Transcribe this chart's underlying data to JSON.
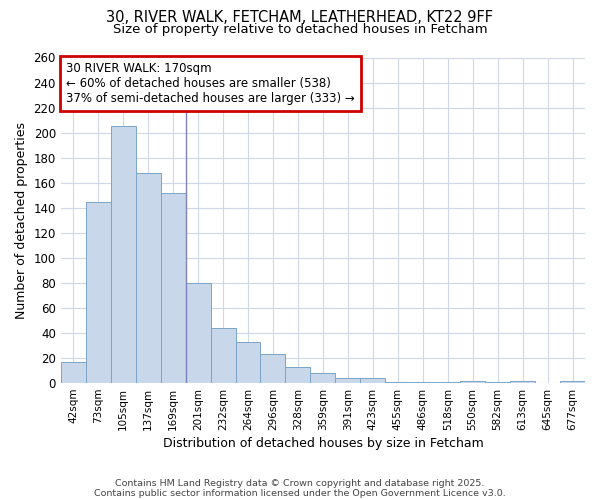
{
  "title1": "30, RIVER WALK, FETCHAM, LEATHERHEAD, KT22 9FF",
  "title2": "Size of property relative to detached houses in Fetcham",
  "xlabel": "Distribution of detached houses by size in Fetcham",
  "ylabel": "Number of detached properties",
  "categories": [
    "42sqm",
    "73sqm",
    "105sqm",
    "137sqm",
    "169sqm",
    "201sqm",
    "232sqm",
    "264sqm",
    "296sqm",
    "328sqm",
    "359sqm",
    "391sqm",
    "423sqm",
    "455sqm",
    "486sqm",
    "518sqm",
    "550sqm",
    "582sqm",
    "613sqm",
    "645sqm",
    "677sqm"
  ],
  "values": [
    17,
    145,
    205,
    168,
    152,
    80,
    44,
    33,
    23,
    13,
    8,
    4,
    4,
    1,
    1,
    1,
    2,
    1,
    2,
    0,
    2
  ],
  "bar_color": "#c8d8ea",
  "bar_edge_color": "#7ba4c8",
  "highlight_index": 4,
  "vline_color": "#8080c0",
  "annotation_line1": "30 RIVER WALK: 170sqm",
  "annotation_line2": "← 60% of detached houses are smaller (538)",
  "annotation_line3": "37% of semi-detached houses are larger (333) →",
  "annotation_box_color": "#cc0000",
  "ylim": [
    0,
    260
  ],
  "yticks": [
    0,
    20,
    40,
    60,
    80,
    100,
    120,
    140,
    160,
    180,
    200,
    220,
    240,
    260
  ],
  "footnote1": "Contains HM Land Registry data © Crown copyright and database right 2025.",
  "footnote2": "Contains public sector information licensed under the Open Government Licence v3.0.",
  "background_color": "#ffffff",
  "plot_background": "#ffffff",
  "grid_color": "#d0d8e8"
}
